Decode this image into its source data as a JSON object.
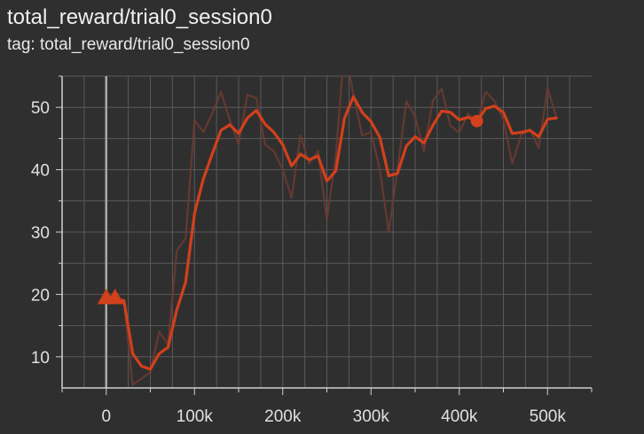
{
  "header": {
    "title": "total_reward/trial0_session0",
    "subtitle": "tag: total_reward/trial0_session0"
  },
  "colors": {
    "background": "#2f2f2f",
    "grid": "#5a5a5a",
    "axis": "#d0d0d0",
    "smoothed": "#d2401c",
    "raw": "#6a3b32",
    "cursor": "#a8a8a8"
  },
  "chart_data": {
    "type": "line",
    "title": "",
    "xlabel": "",
    "ylabel": "",
    "xlim": [
      -50000,
      550000
    ],
    "ylim": [
      5,
      55
    ],
    "grid": true,
    "legend": "none",
    "x_ticks": [
      0,
      100000,
      200000,
      300000,
      400000,
      500000
    ],
    "x_tick_labels": [
      "0",
      "100k",
      "200k",
      "300k",
      "400k",
      "500k"
    ],
    "y_ticks": [
      10,
      20,
      30,
      40,
      50
    ],
    "y_tick_labels": [
      "10",
      "20",
      "30",
      "40",
      "50"
    ],
    "cursor_x": 0,
    "series": [
      {
        "role": "raw",
        "x": [
          0,
          10000,
          20000,
          30000,
          40000,
          50000,
          60000,
          70000,
          80000,
          90000,
          100000,
          110000,
          120000,
          130000,
          140000,
          150000,
          160000,
          170000,
          180000,
          190000,
          200000,
          210000,
          220000,
          230000,
          240000,
          250000,
          260000,
          270000,
          280000,
          290000,
          300000,
          310000,
          320000,
          330000,
          340000,
          350000,
          360000,
          370000,
          380000,
          390000,
          400000,
          410000,
          420000,
          430000,
          440000,
          450000,
          460000,
          470000,
          480000,
          490000,
          500000,
          510000
        ],
        "y": [
          19.5,
          19.5,
          19,
          5.5,
          6.5,
          7.5,
          14,
          12,
          27,
          29,
          48,
          46,
          49,
          52.5,
          48,
          44,
          52,
          51.5,
          44,
          43,
          40,
          35.5,
          45.5,
          41,
          43,
          32,
          42,
          60,
          52,
          45.5,
          46,
          40,
          30,
          40,
          51,
          48.5,
          43,
          51,
          53,
          47,
          46,
          49,
          47.5,
          52.5,
          51,
          48,
          41,
          45.5,
          46.5,
          43.5,
          53,
          48.5
        ]
      },
      {
        "role": "smoothed",
        "x": [
          0,
          10000,
          20000,
          30000,
          40000,
          50000,
          60000,
          70000,
          80000,
          90000,
          100000,
          110000,
          120000,
          130000,
          140000,
          150000,
          160000,
          170000,
          180000,
          190000,
          200000,
          210000,
          220000,
          230000,
          240000,
          250000,
          260000,
          270000,
          280000,
          290000,
          300000,
          310000,
          320000,
          330000,
          340000,
          350000,
          360000,
          370000,
          380000,
          390000,
          400000,
          410000,
          420000,
          430000,
          440000,
          450000,
          460000,
          470000,
          480000,
          490000,
          500000,
          510000
        ],
        "y": [
          19.2,
          19.2,
          19,
          10.5,
          8.5,
          8,
          10.5,
          11.5,
          17.5,
          22,
          33,
          38.5,
          42.5,
          46.3,
          47.2,
          45.8,
          48.3,
          49.5,
          47.3,
          46,
          44,
          40.6,
          42.5,
          41.6,
          42.2,
          38.2,
          39.8,
          48.3,
          51.7,
          49.2,
          47.7,
          45.2,
          39,
          39.4,
          43.8,
          45.3,
          44.3,
          47.1,
          49.4,
          49.2,
          48,
          48.4,
          47.8,
          49.8,
          50.2,
          49.2,
          45.8,
          46,
          46.3,
          45.3,
          48.1,
          48.3
        ]
      }
    ],
    "markers": [
      {
        "shape": "triangle",
        "x": 0,
        "y": 19.5
      },
      {
        "shape": "triangle",
        "x": 10000,
        "y": 19.5
      },
      {
        "shape": "circle",
        "x": 420000,
        "y": 47.8
      }
    ]
  }
}
